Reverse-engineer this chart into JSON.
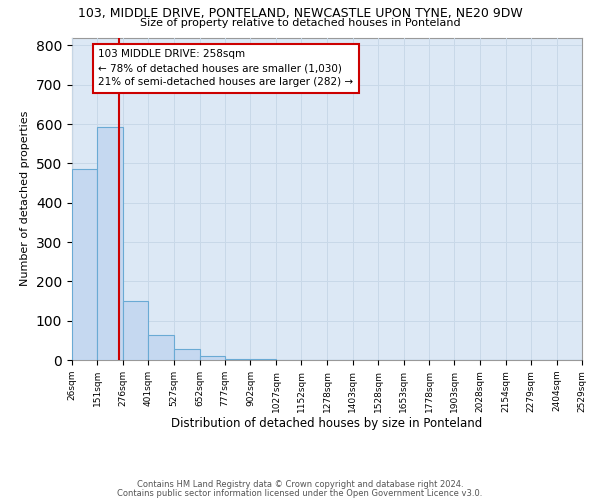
{
  "title1": "103, MIDDLE DRIVE, PONTELAND, NEWCASTLE UPON TYNE, NE20 9DW",
  "title2": "Size of property relative to detached houses in Ponteland",
  "xlabel": "Distribution of detached houses by size in Ponteland",
  "ylabel": "Number of detached properties",
  "bar_values": [
    485,
    592,
    150,
    63,
    27,
    10,
    3,
    2,
    1,
    1,
    0,
    0,
    0,
    0,
    0,
    0,
    0,
    0,
    0,
    0
  ],
  "bin_edges": [
    26,
    151,
    276,
    401,
    527,
    652,
    777,
    902,
    1027,
    1152,
    1278,
    1403,
    1528,
    1653,
    1778,
    1903,
    2028,
    2154,
    2279,
    2404,
    2529
  ],
  "tick_labels": [
    "26sqm",
    "151sqm",
    "276sqm",
    "401sqm",
    "527sqm",
    "652sqm",
    "777sqm",
    "902sqm",
    "1027sqm",
    "1152sqm",
    "1278sqm",
    "1403sqm",
    "1528sqm",
    "1653sqm",
    "1778sqm",
    "1903sqm",
    "2028sqm",
    "2154sqm",
    "2279sqm",
    "2404sqm",
    "2529sqm"
  ],
  "bar_color": "#c5d8f0",
  "bar_edgecolor": "#6aaad4",
  "grid_color": "#c8d8e8",
  "vline_x": 258,
  "vline_color": "#cc0000",
  "annotation_text": "103 MIDDLE DRIVE: 258sqm\n← 78% of detached houses are smaller (1,030)\n21% of semi-detached houses are larger (282) →",
  "annotation_box_edgecolor": "#cc0000",
  "ylim": [
    0,
    820
  ],
  "yticks": [
    0,
    100,
    200,
    300,
    400,
    500,
    600,
    700,
    800
  ],
  "footer1": "Contains HM Land Registry data © Crown copyright and database right 2024.",
  "footer2": "Contains public sector information licensed under the Open Government Licence v3.0.",
  "bg_color": "#ffffff",
  "ax_facecolor": "#dce8f5"
}
